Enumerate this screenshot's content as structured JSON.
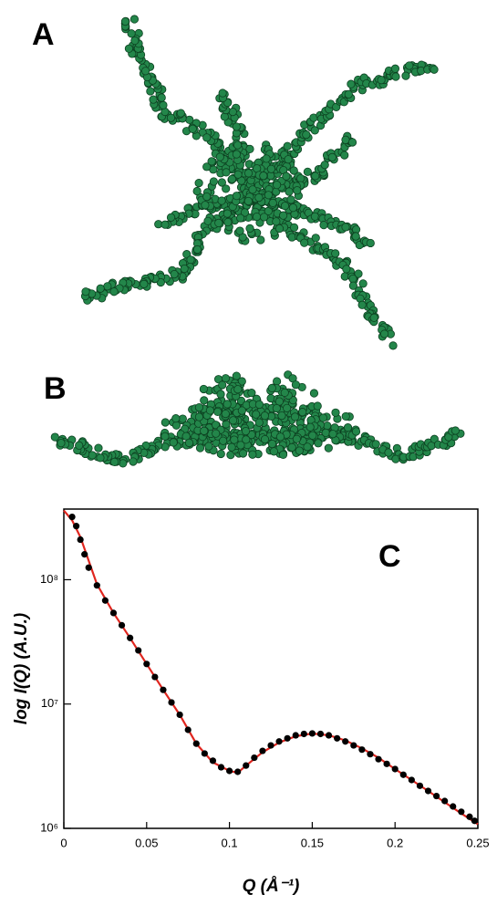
{
  "panel_labels": [
    "A",
    "B"
  ],
  "chart_data": {
    "type": "scatter",
    "panel_label": "C",
    "x_label": "Q (Å⁻¹)",
    "y_label": "log I(Q) (A.U.)",
    "log_y": true,
    "xlim": [
      0,
      0.25
    ],
    "ylim": [
      1000000,
      370000000
    ],
    "xticks": [
      0,
      0.05,
      0.1,
      0.15,
      0.2,
      0.25
    ],
    "yticks": [
      {
        "value": 1000000,
        "label": "10⁶"
      },
      {
        "value": 10000000,
        "label": "10⁷"
      },
      {
        "value": 100000000,
        "label": "10⁸"
      }
    ],
    "series": [
      {
        "type": "line",
        "color": "#e0261f",
        "x": [
          0,
          0.005,
          0.01,
          0.02,
          0.03,
          0.04,
          0.05,
          0.06,
          0.07,
          0.08,
          0.09,
          0.1,
          0.105,
          0.11,
          0.12,
          0.13,
          0.14,
          0.15,
          0.16,
          0.17,
          0.18,
          0.19,
          0.2,
          0.21,
          0.22,
          0.23,
          0.24,
          0.25
        ],
        "values": [
          360000000,
          300000000,
          220000000,
          92000000,
          54000000,
          34000000,
          21000000,
          13000000,
          8200000,
          4800000,
          3400000,
          2900000,
          2800000,
          3200000,
          4100000,
          4900000,
          5500000,
          5800000,
          5600000,
          5100000,
          4400000,
          3700000,
          3000000,
          2450000,
          2000000,
          1620000,
          1320000,
          1080000
        ]
      },
      {
        "type": "scatter",
        "color": "#000000",
        "x": [
          0.005,
          0.0075,
          0.01,
          0.0125,
          0.015,
          0.02,
          0.025,
          0.03,
          0.035,
          0.04,
          0.045,
          0.05,
          0.055,
          0.06,
          0.065,
          0.07,
          0.075,
          0.08,
          0.085,
          0.09,
          0.095,
          0.1,
          0.105,
          0.11,
          0.115,
          0.12,
          0.125,
          0.13,
          0.135,
          0.14,
          0.145,
          0.15,
          0.155,
          0.16,
          0.165,
          0.17,
          0.175,
          0.18,
          0.185,
          0.19,
          0.195,
          0.2,
          0.205,
          0.21,
          0.215,
          0.22,
          0.225,
          0.23,
          0.235,
          0.24,
          0.245,
          0.248
        ],
        "values": [
          320000000,
          270000000,
          210000000,
          160000000,
          125000000,
          90000000,
          68000000,
          54000000,
          43000000,
          34000000,
          27000000,
          21000000,
          16500000,
          13000000,
          10300000,
          8200000,
          6200000,
          4800000,
          4000000,
          3500000,
          3100000,
          2900000,
          2850000,
          3200000,
          3700000,
          4200000,
          4650000,
          5000000,
          5300000,
          5600000,
          5750000,
          5800000,
          5750000,
          5600000,
          5300000,
          5000000,
          4650000,
          4300000,
          3950000,
          3600000,
          3300000,
          3000000,
          2700000,
          2450000,
          2200000,
          2000000,
          1820000,
          1660000,
          1500000,
          1360000,
          1240000,
          1150000
        ]
      }
    ]
  }
}
